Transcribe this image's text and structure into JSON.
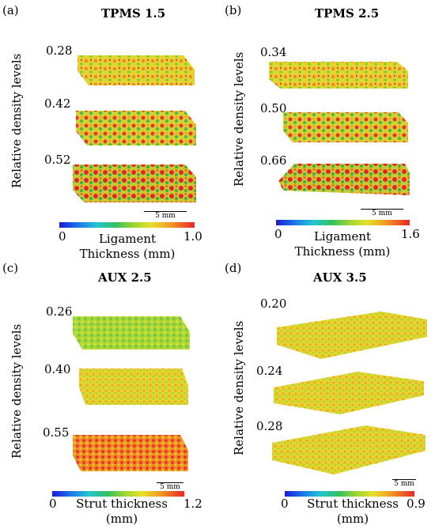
{
  "panels": [
    {
      "letter": "(a)",
      "title": "TPMS 1.5",
      "ylabel": "Relative density levels",
      "densities": [
        "0.28",
        "0.42",
        "0.52"
      ],
      "scale": "5 mm",
      "colorbar": {
        "min": "0",
        "max": "1.0",
        "label_line1": "Ligament",
        "label_line2": "Thickness (mm)"
      }
    },
    {
      "letter": "(b)",
      "title": "TPMS 2.5",
      "ylabel": "Relative density levels",
      "densities": [
        "0.34",
        "0.50",
        "0.66"
      ],
      "scale": "5 mm",
      "colorbar": {
        "min": "0",
        "max": "1.6",
        "label_line1": "Ligament",
        "label_line2": "Thickness (mm)"
      }
    },
    {
      "letter": "(c)",
      "title": "AUX 2.5",
      "ylabel": "Relative density levels",
      "densities": [
        "0.26",
        "0.40",
        "0.55"
      ],
      "scale": "5 mm",
      "colorbar": {
        "min": "0",
        "max": "1.2",
        "label_line1": "Strut thickness",
        "label_line2": "(mm)"
      }
    },
    {
      "letter": "(d)",
      "title": "AUX 3.5",
      "ylabel": "Relative density levels",
      "densities": [
        "0.20",
        "0.24",
        "0.28"
      ],
      "scale": "5 mm",
      "colorbar": {
        "min": "0",
        "max": "0.9",
        "label_line1": "Strut thickness",
        "label_line2": "(mm)"
      }
    }
  ],
  "colors": {
    "low": "#1a1ad8",
    "mid_low": "#35c05a",
    "mid": "#e6e02a",
    "mid_high": "#f39a23",
    "high": "#e8262a"
  }
}
